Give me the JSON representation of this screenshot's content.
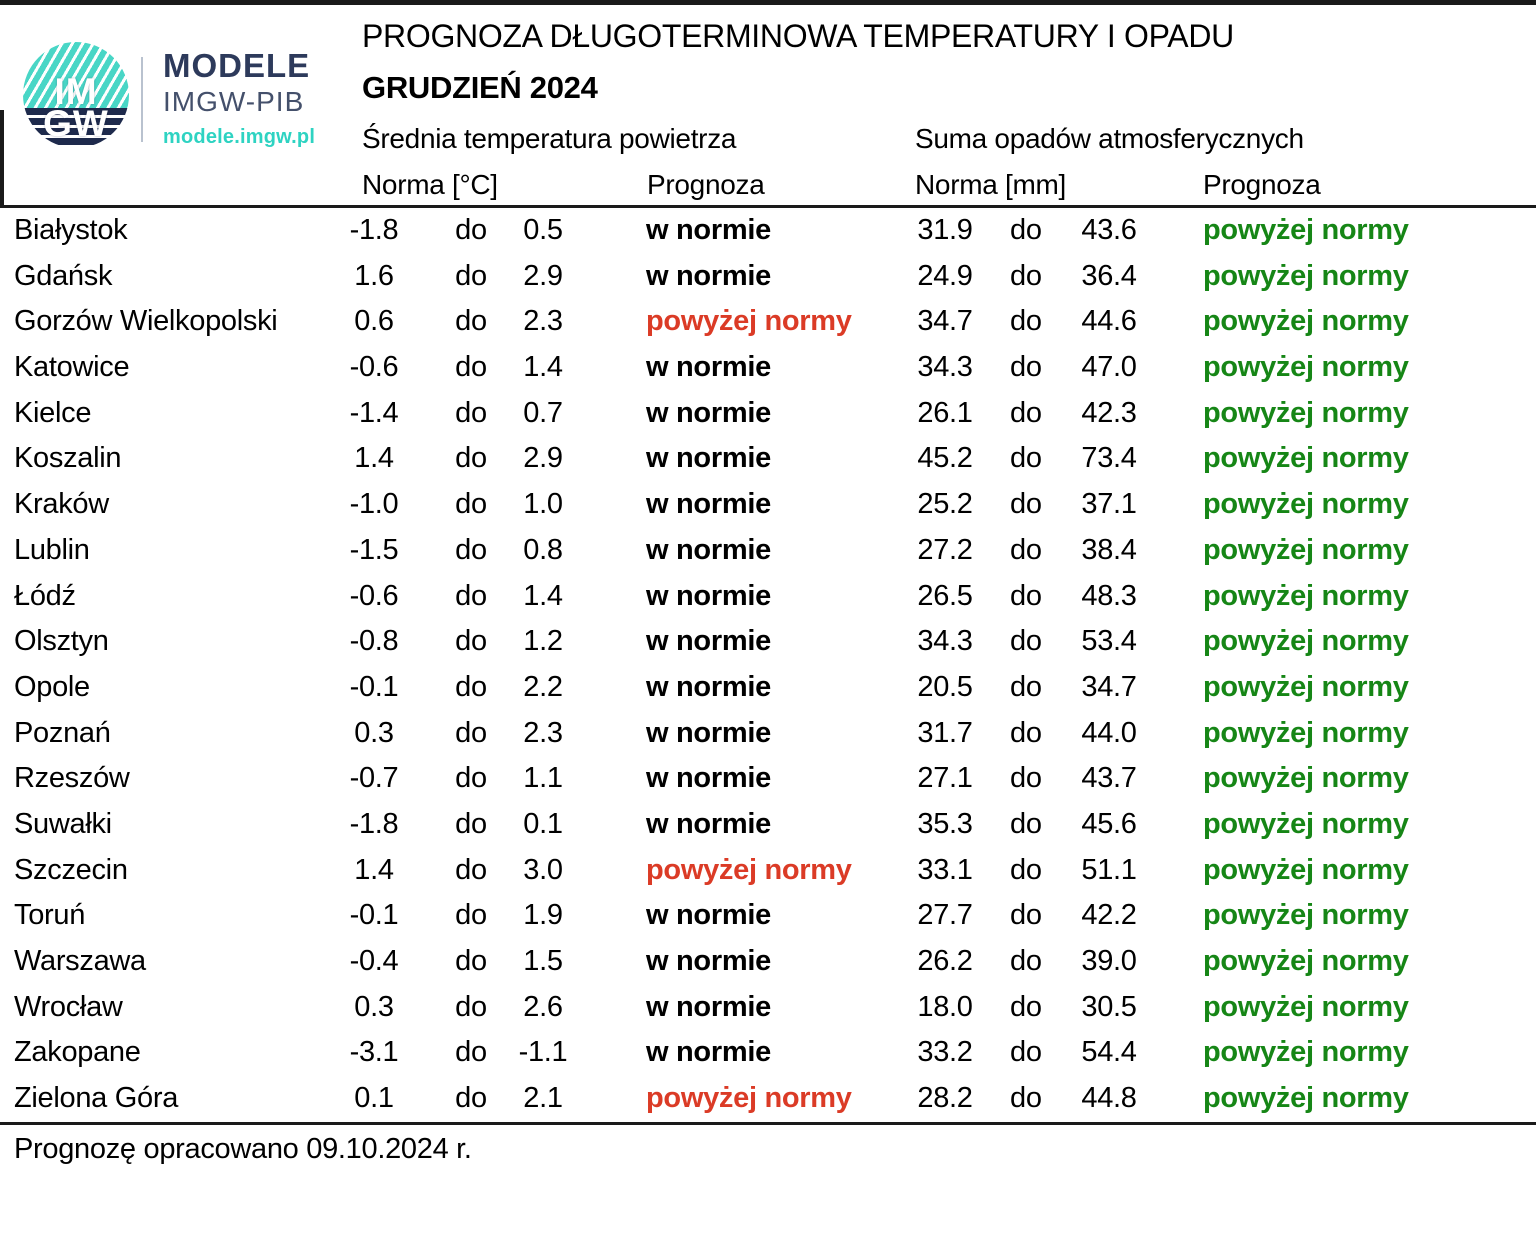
{
  "page": {
    "title": "PROGNOZA DŁUGOTERMINOWA TEMPERATURY I OPADU",
    "subtitle": "GRUDZIEŃ 2024"
  },
  "logo": {
    "circle_top": "IM",
    "circle_bottom": "GW",
    "brand_name": "MODELE",
    "brand_org": "IMGW-PIB",
    "brand_url": "modele.imgw.pl"
  },
  "columns": {
    "temp_section": "Średnia temperatura powietrza",
    "precip_section": "Suma opadów atmosferycznych",
    "temp_norm": "Norma [°C]",
    "temp_prog": "Prognoza",
    "precip_norm": "Norma [mm]",
    "precip_prog": "Prognoza"
  },
  "range_word": "do",
  "rows": [
    {
      "city": "Białystok",
      "t_low": "-1.8",
      "t_high": "0.5",
      "t_prog": "w normie",
      "t_status": "normal",
      "p_low": "31.9",
      "p_high": "43.6",
      "p_prog": "powyżej normy",
      "p_status": "above"
    },
    {
      "city": "Gdańsk",
      "t_low": "1.6",
      "t_high": "2.9",
      "t_prog": "w normie",
      "t_status": "normal",
      "p_low": "24.9",
      "p_high": "36.4",
      "p_prog": "powyżej normy",
      "p_status": "above"
    },
    {
      "city": "Gorzów Wielkopolski",
      "t_low": "0.6",
      "t_high": "2.3",
      "t_prog": "powyżej normy",
      "t_status": "above",
      "p_low": "34.7",
      "p_high": "44.6",
      "p_prog": "powyżej normy",
      "p_status": "above"
    },
    {
      "city": "Katowice",
      "t_low": "-0.6",
      "t_high": "1.4",
      "t_prog": "w normie",
      "t_status": "normal",
      "p_low": "34.3",
      "p_high": "47.0",
      "p_prog": "powyżej normy",
      "p_status": "above"
    },
    {
      "city": "Kielce",
      "t_low": "-1.4",
      "t_high": "0.7",
      "t_prog": "w normie",
      "t_status": "normal",
      "p_low": "26.1",
      "p_high": "42.3",
      "p_prog": "powyżej normy",
      "p_status": "above"
    },
    {
      "city": "Koszalin",
      "t_low": "1.4",
      "t_high": "2.9",
      "t_prog": "w normie",
      "t_status": "normal",
      "p_low": "45.2",
      "p_high": "73.4",
      "p_prog": "powyżej normy",
      "p_status": "above"
    },
    {
      "city": "Kraków",
      "t_low": "-1.0",
      "t_high": "1.0",
      "t_prog": "w normie",
      "t_status": "normal",
      "p_low": "25.2",
      "p_high": "37.1",
      "p_prog": "powyżej normy",
      "p_status": "above"
    },
    {
      "city": "Lublin",
      "t_low": "-1.5",
      "t_high": "0.8",
      "t_prog": "w normie",
      "t_status": "normal",
      "p_low": "27.2",
      "p_high": "38.4",
      "p_prog": "powyżej normy",
      "p_status": "above"
    },
    {
      "city": "Łódź",
      "t_low": "-0.6",
      "t_high": "1.4",
      "t_prog": "w normie",
      "t_status": "normal",
      "p_low": "26.5",
      "p_high": "48.3",
      "p_prog": "powyżej normy",
      "p_status": "above"
    },
    {
      "city": "Olsztyn",
      "t_low": "-0.8",
      "t_high": "1.2",
      "t_prog": "w normie",
      "t_status": "normal",
      "p_low": "34.3",
      "p_high": "53.4",
      "p_prog": "powyżej normy",
      "p_status": "above"
    },
    {
      "city": "Opole",
      "t_low": "-0.1",
      "t_high": "2.2",
      "t_prog": "w normie",
      "t_status": "normal",
      "p_low": "20.5",
      "p_high": "34.7",
      "p_prog": "powyżej normy",
      "p_status": "above"
    },
    {
      "city": "Poznań",
      "t_low": "0.3",
      "t_high": "2.3",
      "t_prog": "w normie",
      "t_status": "normal",
      "p_low": "31.7",
      "p_high": "44.0",
      "p_prog": "powyżej normy",
      "p_status": "above"
    },
    {
      "city": "Rzeszów",
      "t_low": "-0.7",
      "t_high": "1.1",
      "t_prog": "w normie",
      "t_status": "normal",
      "p_low": "27.1",
      "p_high": "43.7",
      "p_prog": "powyżej normy",
      "p_status": "above"
    },
    {
      "city": "Suwałki",
      "t_low": "-1.8",
      "t_high": "0.1",
      "t_prog": "w normie",
      "t_status": "normal",
      "p_low": "35.3",
      "p_high": "45.6",
      "p_prog": "powyżej normy",
      "p_status": "above"
    },
    {
      "city": "Szczecin",
      "t_low": "1.4",
      "t_high": "3.0",
      "t_prog": "powyżej normy",
      "t_status": "above",
      "p_low": "33.1",
      "p_high": "51.1",
      "p_prog": "powyżej normy",
      "p_status": "above"
    },
    {
      "city": "Toruń",
      "t_low": "-0.1",
      "t_high": "1.9",
      "t_prog": "w normie",
      "t_status": "normal",
      "p_low": "27.7",
      "p_high": "42.2",
      "p_prog": "powyżej normy",
      "p_status": "above"
    },
    {
      "city": "Warszawa",
      "t_low": "-0.4",
      "t_high": "1.5",
      "t_prog": "w normie",
      "t_status": "normal",
      "p_low": "26.2",
      "p_high": "39.0",
      "p_prog": "powyżej normy",
      "p_status": "above"
    },
    {
      "city": "Wrocław",
      "t_low": "0.3",
      "t_high": "2.6",
      "t_prog": "w normie",
      "t_status": "normal",
      "p_low": "18.0",
      "p_high": "30.5",
      "p_prog": "powyżej normy",
      "p_status": "above"
    },
    {
      "city": "Zakopane",
      "t_low": "-3.1",
      "t_high": "-1.1",
      "t_prog": "w normie",
      "t_status": "normal",
      "p_low": "33.2",
      "p_high": "54.4",
      "p_prog": "powyżej normy",
      "p_status": "above"
    },
    {
      "city": "Zielona Góra",
      "t_low": "0.1",
      "t_high": "2.1",
      "t_prog": "powyżej normy",
      "t_status": "above",
      "p_low": "28.2",
      "p_high": "44.8",
      "p_prog": "powyżej normy",
      "p_status": "above"
    }
  ],
  "footer": {
    "note": "Prognozę opracowano 09.10.2024 r."
  },
  "colors": {
    "temp_above": "#db3b26",
    "precip_above": "#168616",
    "text": "#000000",
    "brand_navy": "#2d3a5b",
    "brand_gray": "#44506b",
    "brand_teal": "#2ed3c2",
    "logo_teal": "#49d6c6",
    "logo_navy": "#1e2a4c"
  }
}
